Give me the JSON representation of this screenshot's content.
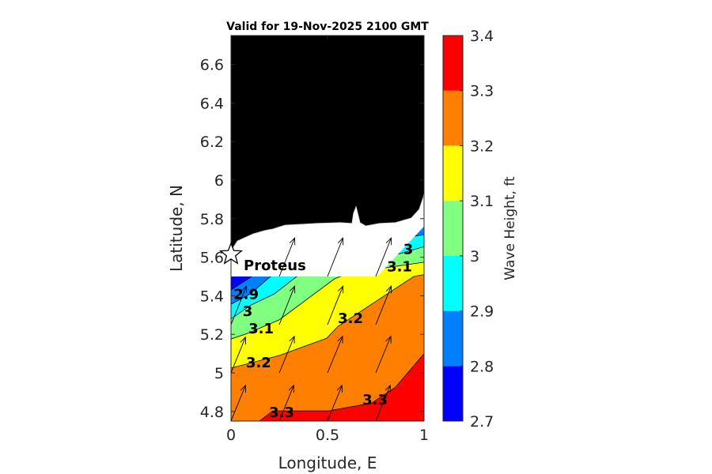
{
  "chart_data": {
    "type": "contourf",
    "title": "Valid for 19-Nov-2025 2100 GMT",
    "xlabel": "Longitude, E",
    "ylabel": "Latitude, N",
    "xlim": [
      0,
      1
    ],
    "ylim": [
      4.75,
      6.75
    ],
    "xticks": [
      {
        "v": 0,
        "label": "0"
      },
      {
        "v": 0.5,
        "label": "0.5"
      },
      {
        "v": 1,
        "label": "1"
      }
    ],
    "yticks": [
      {
        "v": 4.8,
        "label": "4.8"
      },
      {
        "v": 5,
        "label": "5"
      },
      {
        "v": 5.2,
        "label": "5.2"
      },
      {
        "v": 5.4,
        "label": "5.4"
      },
      {
        "v": 5.6,
        "label": "5.6"
      },
      {
        "v": 5.8,
        "label": "5.8"
      },
      {
        "v": 6,
        "label": "6"
      },
      {
        "v": 6.2,
        "label": "6.2"
      },
      {
        "v": 6.4,
        "label": "6.4"
      },
      {
        "v": 6.6,
        "label": "6.6"
      }
    ],
    "colorbar": {
      "label": "Wave Height, ft",
      "levels": [
        2.7,
        2.8,
        2.9,
        3.0,
        3.1,
        3.2,
        3.3,
        3.4
      ],
      "tick_labels": [
        "2.7",
        "2.8",
        "2.9",
        "3",
        "3.1",
        "3.2",
        "3.3",
        "3.4"
      ],
      "colors": [
        "#0000ff",
        "#0080ff",
        "#00ffff",
        "#80ff80",
        "#ffff00",
        "#ff8000",
        "#ff0000"
      ]
    },
    "base_color": "#0000ff",
    "contours": [
      {
        "level": 2.8,
        "fill": "#0080ff",
        "points": [
          [
            0,
            5.43
          ],
          [
            0.107,
            5.5
          ],
          [
            0.9,
            5.85
          ],
          [
            1,
            5.9
          ]
        ]
      },
      {
        "level": 2.9,
        "fill": "#00ffff",
        "points": [
          [
            0,
            5.356
          ],
          [
            0.1,
            5.41
          ],
          [
            0.205,
            5.5
          ],
          [
            0.95,
            5.71
          ],
          [
            1,
            5.717
          ]
        ]
      },
      {
        "level": 3.0,
        "fill": "#80ff80",
        "points": [
          [
            0,
            5.28
          ],
          [
            0.1,
            5.35
          ],
          [
            0.225,
            5.41
          ],
          [
            0.34,
            5.5
          ],
          [
            0.88,
            5.62
          ],
          [
            1,
            5.655
          ]
        ]
      },
      {
        "level": 3.1,
        "fill": "#ffff00",
        "points": [
          [
            0,
            5.176
          ],
          [
            0.086,
            5.205
          ],
          [
            0.25,
            5.275
          ],
          [
            0.332,
            5.336
          ],
          [
            0.537,
            5.488
          ],
          [
            0.566,
            5.5
          ],
          [
            0.8,
            5.545
          ],
          [
            1,
            5.574
          ]
        ]
      },
      {
        "level": 3.2,
        "fill": "#ff8000",
        "points": [
          [
            0,
            5.025
          ],
          [
            0.25,
            5.09
          ],
          [
            0.496,
            5.18
          ],
          [
            0.553,
            5.24
          ],
          [
            0.84,
            5.43
          ],
          [
            0.947,
            5.5
          ],
          [
            1,
            5.51
          ]
        ]
      },
      {
        "level": 3.3,
        "fill": "#ff0000",
        "points": [
          [
            0.148,
            4.75
          ],
          [
            0.217,
            4.803
          ],
          [
            0.504,
            4.803
          ],
          [
            0.73,
            4.844
          ],
          [
            0.852,
            4.926
          ],
          [
            1,
            5.1
          ]
        ]
      }
    ],
    "no_data_region_top": 5.5,
    "no_data_wedge_edge": [
      [
        0.757,
        5.5
      ],
      [
        1,
        5.76
      ]
    ],
    "coastline": [
      [
        0,
        5.631
      ],
      [
        0.033,
        5.684
      ],
      [
        0.115,
        5.721
      ],
      [
        0.176,
        5.738
      ],
      [
        0.217,
        5.746
      ],
      [
        0.279,
        5.766
      ],
      [
        0.443,
        5.775
      ],
      [
        0.566,
        5.779
      ],
      [
        0.627,
        5.775
      ],
      [
        0.635,
        5.828
      ],
      [
        0.648,
        5.861
      ],
      [
        0.656,
        5.828
      ],
      [
        0.668,
        5.779
      ],
      [
        0.697,
        5.762
      ],
      [
        0.77,
        5.775
      ],
      [
        0.852,
        5.779
      ],
      [
        0.934,
        5.803
      ],
      [
        0.975,
        5.848
      ],
      [
        0.996,
        5.91
      ],
      [
        1,
        5.93
      ]
    ],
    "contour_labels": [
      {
        "text": "2.9",
        "lon": 0.078,
        "lat": 5.407
      },
      {
        "text": "3",
        "lon": 0.086,
        "lat": 5.32
      },
      {
        "text": "3.1",
        "lon": 0.156,
        "lat": 5.23
      },
      {
        "text": "3.2",
        "lon": 0.143,
        "lat": 5.054
      },
      {
        "text": "3.3",
        "lon": 0.262,
        "lat": 4.795
      },
      {
        "text": "3.2",
        "lon": 0.619,
        "lat": 5.283
      },
      {
        "text": "3.3",
        "lon": 0.746,
        "lat": 4.861
      },
      {
        "text": "3",
        "lon": 0.918,
        "lat": 5.641
      },
      {
        "text": "3.1",
        "lon": 0.873,
        "lat": 5.559
      }
    ],
    "arrows": [
      {
        "lon": 0,
        "lat": 4.75,
        "u": 0.075,
        "v": 0.185
      },
      {
        "lon": 0.25,
        "lat": 4.75,
        "u": 0.075,
        "v": 0.185
      },
      {
        "lon": 0.5,
        "lat": 4.75,
        "u": 0.075,
        "v": 0.185
      },
      {
        "lon": 0.75,
        "lat": 4.75,
        "u": 0.075,
        "v": 0.185
      },
      {
        "lon": 0,
        "lat": 5.0,
        "u": 0.075,
        "v": 0.185
      },
      {
        "lon": 0.25,
        "lat": 5.0,
        "u": 0.078,
        "v": 0.19
      },
      {
        "lon": 0.5,
        "lat": 5.0,
        "u": 0.078,
        "v": 0.19
      },
      {
        "lon": 0.75,
        "lat": 5.0,
        "u": 0.078,
        "v": 0.19
      },
      {
        "lon": 0,
        "lat": 5.25,
        "u": 0.08,
        "v": 0.2
      },
      {
        "lon": 0.25,
        "lat": 5.25,
        "u": 0.08,
        "v": 0.2
      },
      {
        "lon": 0.5,
        "lat": 5.25,
        "u": 0.08,
        "v": 0.2
      },
      {
        "lon": 0.75,
        "lat": 5.25,
        "u": 0.08,
        "v": 0.2
      },
      {
        "lon": 0.25,
        "lat": 5.5,
        "u": 0.08,
        "v": 0.2
      },
      {
        "lon": 0.5,
        "lat": 5.5,
        "u": 0.08,
        "v": 0.2
      },
      {
        "lon": 0.75,
        "lat": 5.5,
        "u": 0.08,
        "v": 0.2
      }
    ],
    "station": {
      "name": "Proteus",
      "lon": 0,
      "lat": 5.615
    },
    "land_color": "#000000"
  }
}
